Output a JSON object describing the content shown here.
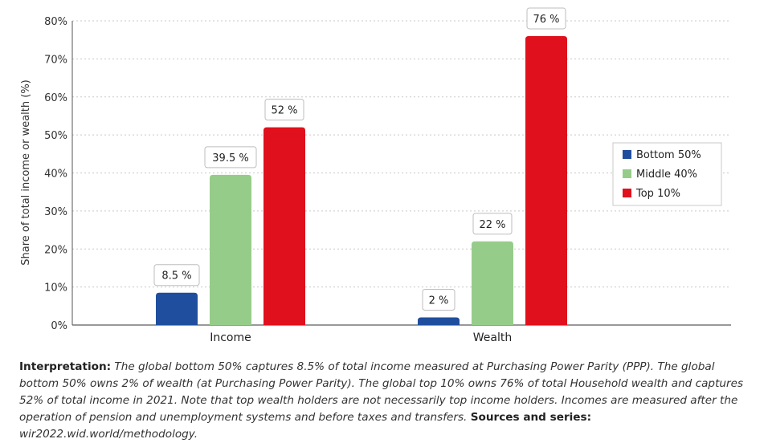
{
  "chart_data": {
    "type": "bar",
    "categories": [
      "Income",
      "Wealth"
    ],
    "series": [
      {
        "name": "Bottom 50%",
        "color": "#1f4e9e",
        "values": [
          8.5,
          2
        ]
      },
      {
        "name": "Middle 40%",
        "color": "#96cc8a",
        "values": [
          39.5,
          22
        ]
      },
      {
        "name": "Top 10%",
        "color": "#e0101c",
        "values": [
          52,
          76
        ]
      }
    ],
    "data_labels": [
      [
        "8.5 %",
        "2 %"
      ],
      [
        "39.5 %",
        "22 %"
      ],
      [
        "52 %",
        "76 %"
      ]
    ],
    "ylabel": "Share of total income or wealth (%)",
    "xlabel": "",
    "ylim": [
      0,
      80
    ],
    "yticks": [
      "0%",
      "10%",
      "20%",
      "30%",
      "40%",
      "50%",
      "60%",
      "70%",
      "80%"
    ],
    "grid": true,
    "legend_position": "right"
  },
  "caption": {
    "interp_label": "Interpretation:",
    "interp_text": " The global bottom 50% captures 8.5% of total income measured at Purchasing Power Parity (PPP). The global bottom 50% owns 2% of wealth (at Purchasing Power Parity). The global top 10% owns 76% of total Household wealth and captures 52% of total income in 2021. Note that top wealth holders are not necessarily top income holders. Incomes are measured after the operation of pension and unemployment systems and before taxes and transfers. ",
    "sources_label": "Sources and series:",
    "sources_text": " wir2022.wid.world/methodology."
  }
}
